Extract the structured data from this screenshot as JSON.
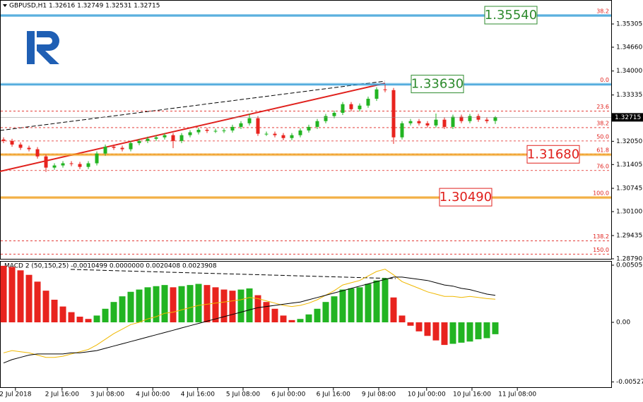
{
  "chart_data": {
    "type": "candlestick",
    "header": "GBPUSD,H1  1.32616 1.32749 1.32531 1.32715",
    "open": [
      1.321,
      1.3206,
      1.3196,
      1.3187,
      1.3183,
      1.3163,
      1.3132,
      1.3138,
      1.3144,
      1.3142,
      1.3134,
      1.3144,
      1.3171,
      1.319,
      1.3187,
      1.3183,
      1.32,
      1.3206,
      1.3212,
      1.3216,
      1.3222,
      1.3206,
      1.3222,
      1.323,
      1.3237,
      1.3234,
      1.3234,
      1.3235,
      1.3245,
      1.3255,
      1.3269,
      1.3226,
      1.3226,
      1.3222,
      1.3214,
      1.3222,
      1.3235,
      1.3245,
      1.3261,
      1.3275,
      1.3284,
      1.3308,
      1.3294,
      1.3304,
      1.3323,
      1.3349,
      1.3347,
      1.3216,
      1.3255,
      1.3261,
      1.3255,
      1.3249,
      1.3265,
      1.3245,
      1.3273,
      1.3261,
      1.3275,
      1.3265,
      1.32616
    ],
    "high": [
      1.3216,
      1.3212,
      1.3202,
      1.3193,
      1.3189,
      1.3169,
      1.3144,
      1.315,
      1.315,
      1.3148,
      1.315,
      1.3177,
      1.3196,
      1.3196,
      1.3193,
      1.3206,
      1.3212,
      1.3218,
      1.3222,
      1.3228,
      1.3228,
      1.3228,
      1.3236,
      1.3243,
      1.3243,
      1.324,
      1.3241,
      1.3251,
      1.3261,
      1.3282,
      1.3275,
      1.3232,
      1.3232,
      1.3228,
      1.3228,
      1.3241,
      1.3251,
      1.3267,
      1.3281,
      1.329,
      1.3314,
      1.3314,
      1.331,
      1.3329,
      1.3355,
      1.3362,
      1.3353,
      1.3261,
      1.3267,
      1.3267,
      1.3261,
      1.3282,
      1.3271,
      1.3279,
      1.3279,
      1.3281,
      1.3281,
      1.3271,
      1.32749
    ],
    "low": [
      1.32,
      1.319,
      1.3181,
      1.3177,
      1.3157,
      1.312,
      1.3126,
      1.3132,
      1.3136,
      1.3128,
      1.3128,
      1.3138,
      1.3165,
      1.3181,
      1.3177,
      1.3177,
      1.3194,
      1.32,
      1.3206,
      1.321,
      1.3186,
      1.32,
      1.3216,
      1.3224,
      1.3228,
      1.3228,
      1.3228,
      1.3229,
      1.3239,
      1.3249,
      1.322,
      1.322,
      1.3216,
      1.3208,
      1.3208,
      1.3216,
      1.3229,
      1.3239,
      1.3255,
      1.3269,
      1.3278,
      1.3288,
      1.3288,
      1.3298,
      1.3317,
      1.3341,
      1.3198,
      1.321,
      1.3249,
      1.3249,
      1.3243,
      1.3243,
      1.3239,
      1.3239,
      1.3255,
      1.3255,
      1.3259,
      1.3255,
      1.32531
    ],
    "close": [
      1.3206,
      1.3196,
      1.3187,
      1.3183,
      1.3163,
      1.3132,
      1.3138,
      1.3144,
      1.3142,
      1.3134,
      1.3144,
      1.3171,
      1.319,
      1.3187,
      1.3183,
      1.32,
      1.3206,
      1.3212,
      1.3216,
      1.3222,
      1.3206,
      1.3222,
      1.323,
      1.3237,
      1.3234,
      1.3234,
      1.3235,
      1.3245,
      1.3255,
      1.3269,
      1.3226,
      1.3226,
      1.3222,
      1.3214,
      1.3222,
      1.3235,
      1.3245,
      1.3261,
      1.3275,
      1.3284,
      1.3308,
      1.3294,
      1.3304,
      1.3323,
      1.3349,
      1.3347,
      1.3216,
      1.3255,
      1.3261,
      1.3255,
      1.3249,
      1.3265,
      1.3245,
      1.3273,
      1.3261,
      1.3275,
      1.3265,
      1.3261,
      1.32715
    ],
    "up_color": "#22b422",
    "down_color": "#e8231e",
    "ylim": [
      1.2877,
      1.3597
    ],
    "yticks": [
      1.35305,
      {
        "value": 1.3466,
        "label": "1.34660"
      },
      {
        "value": 1.34,
        "label": "1.34000"
      },
      1.33335,
      {
        "value": 1.3205,
        "label": "1.32050"
      },
      1.31405,
      1.30745,
      {
        "value": 1.301,
        "label": "1.30100"
      },
      1.29435,
      {
        "value": 1.2879,
        "label": "1.28790"
      }
    ],
    "xlim": [
      -0.42,
      71.67
    ],
    "xticks": [
      {
        "value": 1.4,
        "label": "2 Jul 2018"
      },
      {
        "value": 6.9,
        "label": "2 Jul 16:00"
      },
      {
        "value": 12.25,
        "label": "3 Jul 08:00"
      },
      {
        "value": 17.6,
        "label": "4 Jul 00:00"
      },
      {
        "value": 22.9,
        "label": "4 Jul 16:00"
      },
      {
        "value": 28.25,
        "label": "5 Jul 08:00"
      },
      {
        "value": 33.6,
        "label": "6 Jul 00:00"
      },
      {
        "value": 38.9,
        "label": "6 Jul 16:00"
      },
      {
        "value": 44.25,
        "label": "9 Jul 08:00"
      },
      {
        "value": 49.9,
        "label": "10 Jul 00:00"
      },
      {
        "value": 55.25,
        "label": "10 Jul 16:00"
      },
      {
        "value": 60.6,
        "label": "11 Jul 08:00"
      }
    ],
    "fib_levels": [
      {
        "label": "38.2",
        "value": 1.3554
      },
      {
        "label": "0.0",
        "value": 1.3363
      },
      {
        "label": "23.6",
        "value": 1.3289
      },
      {
        "label": "38.2",
        "value": 1.3243
      },
      {
        "label": "50.0",
        "value": 1.3206
      },
      {
        "label": "61.8",
        "value": 1.3169
      },
      {
        "label": "76.0",
        "value": 1.3124
      },
      {
        "label": "100.0",
        "value": 1.3049
      },
      {
        "label": "138.2",
        "value": 1.2929
      },
      {
        "label": "150.0",
        "value": 1.2892
      }
    ],
    "levels": [
      {
        "label": "1.35540",
        "value": 1.3554,
        "color": "#2e8b2e",
        "line_color": "#3aa0d8"
      },
      {
        "label": "1.33630",
        "value": 1.3363,
        "color": "#2e8b2e",
        "line_color": "#3aa0d8"
      },
      {
        "label": "1.31680",
        "value": 1.3168,
        "color": "#e0201c",
        "line_color": "#f0a020"
      },
      {
        "label": "1.30490",
        "value": 1.3049,
        "color": "#e0201c",
        "line_color": "#f0a020"
      }
    ],
    "macd": {
      "header": "MACD 2 (50,150,25) -0.0010499 0.0000000 0.0020408 0.0023908",
      "histogram": [
        0.005,
        0.0049,
        0.0046,
        0.0042,
        0.0036,
        0.0028,
        0.002,
        0.0014,
        0.0009,
        0.0005,
        0.0003,
        0.0006,
        0.0012,
        0.0018,
        0.0023,
        0.0027,
        0.0029,
        0.0031,
        0.0032,
        0.0033,
        0.0031,
        0.0032,
        0.0033,
        0.0034,
        0.0033,
        0.0031,
        0.0029,
        0.0028,
        0.0029,
        0.003,
        0.0024,
        0.0018,
        0.0012,
        0.0006,
        0.0002,
        0.0003,
        0.0007,
        0.0012,
        0.0018,
        0.0023,
        0.0029,
        0.003,
        0.0031,
        0.0034,
        0.0037,
        0.0039,
        0.0022,
        0.0006,
        -0.0003,
        -0.0008,
        -0.0012,
        -0.0016,
        -0.002,
        -0.0019,
        -0.0018,
        -0.0017,
        -0.0015,
        -0.0014,
        -0.0010499
      ],
      "series": [
        {
          "color": "#f0b800",
          "values": [
            -0.0027,
            -0.0025,
            -0.0026,
            -0.0027,
            -0.0029,
            -0.0031,
            -0.0031,
            -0.003,
            -0.0028,
            -0.0026,
            -0.0024,
            -0.002,
            -0.0015,
            -0.001,
            -0.0006,
            -0.0002,
            0.0,
            0.0003,
            0.0005,
            0.0008,
            0.0009,
            0.0011,
            0.0013,
            0.0015,
            0.0016,
            0.0017,
            0.0018,
            0.0019,
            0.002,
            0.0022,
            0.0021,
            0.0019,
            0.0017,
            0.0015,
            0.0014,
            0.0015,
            0.0017,
            0.002,
            0.0024,
            0.0028,
            0.0033,
            0.0035,
            0.0037,
            0.0041,
            0.0045,
            0.0047,
            0.0042,
            0.0036,
            0.0033,
            0.003,
            0.0027,
            0.0025,
            0.0023,
            0.0023,
            0.0022,
            0.0023,
            0.0022,
            0.0021,
            0.0020408
          ]
        },
        {
          "color": "#000000",
          "values": [
            -0.0036,
            -0.0033,
            -0.0031,
            -0.0029,
            -0.0028,
            -0.0028,
            -0.0028,
            -0.0028,
            -0.0027,
            -0.0027,
            -0.0026,
            -0.0025,
            -0.0023,
            -0.0021,
            -0.0019,
            -0.0017,
            -0.0015,
            -0.0013,
            -0.0011,
            -0.0009,
            -0.0007,
            -0.0005,
            -0.0003,
            -0.0001,
            0.0001,
            0.0003,
            0.0005,
            0.0007,
            0.0009,
            0.0011,
            0.0013,
            0.0014,
            0.0015,
            0.0016,
            0.0017,
            0.0018,
            0.002,
            0.0022,
            0.0024,
            0.0026,
            0.0028,
            0.003,
            0.0032,
            0.0034,
            0.0036,
            0.0038,
            0.004,
            0.004,
            0.0039,
            0.0038,
            0.0037,
            0.0035,
            0.0033,
            0.0032,
            0.003,
            0.0029,
            0.0027,
            0.0025,
            0.0023908
          ]
        }
      ],
      "ylim": [
        -0.0058,
        0.00543
      ],
      "yticks": [
        0.005056,
        {
          "value": 0,
          "label": "0.00"
        },
        -0.005275
      ]
    }
  }
}
